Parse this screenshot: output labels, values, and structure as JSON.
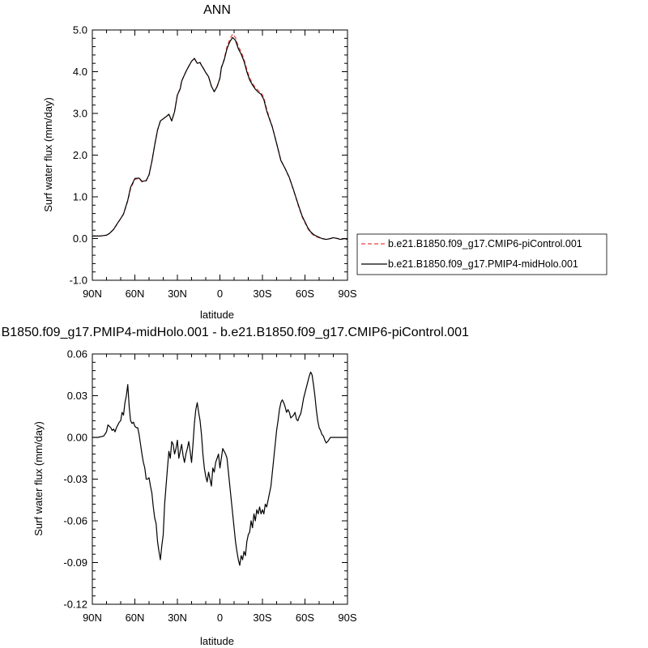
{
  "chart_data": [
    {
      "type": "line",
      "title": "ANN",
      "xlabel": "latitude",
      "ylabel": "Surf water flux (mm/day)",
      "xlim": [
        90,
        -90
      ],
      "ylim": [
        -1.0,
        5.0
      ],
      "x_ticks": [
        90,
        60,
        30,
        0,
        -30,
        -60,
        -90
      ],
      "x_tick_labels": [
        "90N",
        "60N",
        "30N",
        "0",
        "30S",
        "60S",
        "90S"
      ],
      "y_ticks": [
        -1.0,
        0.0,
        1.0,
        2.0,
        3.0,
        4.0,
        5.0
      ],
      "y_tick_labels": [
        "-1.0",
        "0.0",
        "1.0",
        "2.0",
        "3.0",
        "4.0",
        "5.0"
      ],
      "grid": false,
      "legend_position": "right",
      "series": [
        {
          "name": "b.e21.B1850.f09_g17.CMIP6-piControl.001",
          "color": "#e8413c",
          "dash": "dashed",
          "x": [
            90,
            85,
            80,
            78,
            75,
            72,
            70,
            68,
            65,
            63,
            60,
            57,
            55,
            52,
            50,
            48,
            46,
            44,
            42,
            40,
            38,
            36,
            34,
            32,
            31,
            30,
            28,
            27,
            26,
            24,
            22,
            20,
            18,
            16,
            14,
            13,
            12,
            10,
            8,
            6,
            4,
            2,
            0,
            -1,
            -3,
            -5,
            -7,
            -9,
            -11,
            -13,
            -15,
            -17,
            -19,
            -21,
            -23,
            -25,
            -27,
            -29,
            -31,
            -33,
            -35,
            -37,
            -40,
            -43,
            -46,
            -49,
            -52,
            -55,
            -58,
            -60,
            -62,
            -64,
            -66,
            -68,
            -70,
            -72,
            -75,
            -78,
            -80,
            -83,
            -85,
            -88,
            -90
          ],
          "y": [
            0.06,
            0.06,
            0.08,
            0.12,
            0.22,
            0.38,
            0.48,
            0.58,
            0.9,
            1.2,
            1.42,
            1.44,
            1.36,
            1.38,
            1.52,
            1.85,
            2.25,
            2.6,
            2.82,
            2.87,
            2.92,
            2.98,
            2.82,
            3.05,
            3.25,
            3.45,
            3.6,
            3.78,
            3.85,
            4.0,
            4.13,
            4.25,
            4.32,
            4.2,
            4.22,
            4.15,
            4.1,
            3.98,
            3.88,
            3.65,
            3.52,
            3.65,
            3.85,
            4.1,
            4.3,
            4.6,
            4.78,
            4.9,
            4.82,
            4.6,
            4.48,
            4.3,
            4.05,
            3.85,
            3.72,
            3.62,
            3.55,
            3.5,
            3.38,
            3.1,
            2.88,
            2.68,
            2.28,
            1.88,
            1.68,
            1.45,
            1.15,
            0.82,
            0.52,
            0.38,
            0.24,
            0.14,
            0.08,
            0.04,
            0.02,
            0.0,
            -0.02,
            0.0,
            0.02,
            0.0,
            -0.02,
            0.0,
            -0.02
          ]
        },
        {
          "name": "b.e21.B1850.f09_g17.PMIP4-midHolo.001",
          "color": "#000000",
          "dash": "solid",
          "x": [
            90,
            85,
            80,
            78,
            75,
            72,
            70,
            68,
            65,
            63,
            60,
            57,
            55,
            52,
            50,
            48,
            46,
            44,
            42,
            40,
            38,
            36,
            34,
            32,
            31,
            30,
            28,
            27,
            26,
            24,
            22,
            20,
            18,
            16,
            14,
            13,
            12,
            10,
            8,
            6,
            4,
            2,
            0,
            -1,
            -3,
            -5,
            -7,
            -9,
            -11,
            -13,
            -15,
            -17,
            -19,
            -21,
            -23,
            -25,
            -27,
            -29,
            -31,
            -33,
            -35,
            -37,
            -40,
            -43,
            -46,
            -49,
            -52,
            -55,
            -58,
            -60,
            -62,
            -64,
            -66,
            -68,
            -70,
            -72,
            -75,
            -78,
            -80,
            -83,
            -85,
            -88,
            -90
          ],
          "y": [
            0.06,
            0.06,
            0.08,
            0.12,
            0.22,
            0.38,
            0.48,
            0.59,
            0.92,
            1.23,
            1.44,
            1.45,
            1.37,
            1.39,
            1.53,
            1.85,
            2.24,
            2.6,
            2.82,
            2.87,
            2.92,
            2.98,
            2.82,
            3.04,
            3.24,
            3.44,
            3.59,
            3.77,
            3.85,
            4.0,
            4.13,
            4.25,
            4.32,
            4.2,
            4.22,
            4.15,
            4.1,
            3.98,
            3.88,
            3.65,
            3.52,
            3.64,
            3.84,
            4.09,
            4.28,
            4.55,
            4.72,
            4.82,
            4.75,
            4.55,
            4.42,
            4.25,
            4.0,
            3.8,
            3.68,
            3.58,
            3.51,
            3.46,
            3.33,
            3.06,
            2.86,
            2.67,
            2.28,
            1.87,
            1.68,
            1.46,
            1.16,
            0.84,
            0.54,
            0.4,
            0.26,
            0.16,
            0.1,
            0.06,
            0.03,
            0.0,
            -0.02,
            0.0,
            0.02,
            0.0,
            -0.02,
            0.0,
            -0.02
          ]
        }
      ]
    },
    {
      "type": "line",
      "title": "b.e21.B1850.f09_g17.PMIP4-midHolo.001 - b.e21.B1850.f09_g17.CMIP6-piControl.001",
      "xlabel": "latitude",
      "ylabel": "Surf water flux (mm/day)",
      "xlim": [
        90,
        -90
      ],
      "ylim": [
        -0.12,
        0.06
      ],
      "x_ticks": [
        90,
        60,
        30,
        0,
        -30,
        -60,
        -90
      ],
      "x_tick_labels": [
        "90N",
        "60N",
        "30N",
        "0",
        "30S",
        "60S",
        "90S"
      ],
      "y_ticks": [
        -0.12,
        -0.09,
        -0.06,
        -0.03,
        0.0,
        0.03,
        0.06
      ],
      "y_tick_labels": [
        "-0.12",
        "-0.09",
        "-0.06",
        "-0.03",
        "0.00",
        "0.03",
        "0.06"
      ],
      "grid": false,
      "series": [
        {
          "color": "#000000",
          "dash": "solid",
          "x": [
            90,
            86,
            82,
            80,
            79,
            78,
            77,
            76,
            75,
            74,
            73,
            72,
            71,
            70,
            69,
            68,
            67,
            66,
            65,
            64,
            63,
            62,
            61,
            60,
            59,
            58,
            57,
            56,
            55,
            54,
            53,
            52,
            51,
            50,
            49,
            48,
            47,
            46,
            45,
            44,
            43,
            42,
            41,
            40,
            39,
            38,
            37,
            36,
            35,
            34,
            33,
            32,
            31,
            30,
            29,
            28,
            27,
            26,
            25,
            24,
            23,
            22,
            21,
            20,
            19,
            18,
            17,
            16,
            15,
            14,
            13,
            12,
            11,
            10,
            9,
            8,
            7,
            6,
            5,
            4,
            3,
            2,
            1,
            0,
            -1,
            -2,
            -3,
            -4,
            -5,
            -6,
            -7,
            -8,
            -9,
            -10,
            -11,
            -12,
            -13,
            -14,
            -15,
            -16,
            -17,
            -18,
            -19,
            -20,
            -21,
            -22,
            -23,
            -24,
            -25,
            -26,
            -27,
            -28,
            -29,
            -30,
            -31,
            -32,
            -33,
            -34,
            -35,
            -36,
            -37,
            -38,
            -39,
            -40,
            -41,
            -42,
            -43,
            -44,
            -45,
            -46,
            -47,
            -48,
            -49,
            -50,
            -51,
            -52,
            -53,
            -54,
            -55,
            -56,
            -57,
            -58,
            -59,
            -60,
            -61,
            -62,
            -63,
            -64,
            -65,
            -66,
            -67,
            -68,
            -69,
            -70,
            -71,
            -72,
            -73,
            -74,
            -75,
            -76,
            -78,
            -80,
            -83,
            -86,
            -90
          ],
          "y": [
            0.0,
            0.0,
            0.001,
            0.004,
            0.009,
            0.008,
            0.007,
            0.005,
            0.006,
            0.004,
            0.007,
            0.009,
            0.011,
            0.012,
            0.018,
            0.016,
            0.025,
            0.03,
            0.038,
            0.022,
            0.012,
            0.01,
            0.011,
            0.008,
            0.007,
            0.007,
            0.002,
            -0.005,
            -0.012,
            -0.018,
            -0.022,
            -0.03,
            -0.03,
            -0.029,
            -0.035,
            -0.04,
            -0.05,
            -0.058,
            -0.062,
            -0.075,
            -0.082,
            -0.088,
            -0.078,
            -0.07,
            -0.048,
            -0.035,
            -0.022,
            -0.01,
            -0.015,
            -0.003,
            -0.005,
            -0.012,
            -0.008,
            -0.002,
            -0.015,
            -0.01,
            -0.005,
            -0.013,
            -0.018,
            -0.012,
            -0.008,
            -0.003,
            -0.01,
            -0.018,
            -0.005,
            0.01,
            0.02,
            0.025,
            0.018,
            0.012,
            0.002,
            -0.012,
            -0.022,
            -0.028,
            -0.032,
            -0.025,
            -0.03,
            -0.035,
            -0.022,
            -0.025,
            -0.018,
            -0.015,
            -0.012,
            -0.022,
            -0.015,
            -0.008,
            -0.01,
            -0.012,
            -0.015,
            -0.025,
            -0.035,
            -0.045,
            -0.055,
            -0.065,
            -0.075,
            -0.082,
            -0.088,
            -0.092,
            -0.085,
            -0.088,
            -0.082,
            -0.085,
            -0.075,
            -0.07,
            -0.068,
            -0.06,
            -0.065,
            -0.055,
            -0.06,
            -0.052,
            -0.055,
            -0.05,
            -0.055,
            -0.052,
            -0.055,
            -0.048,
            -0.05,
            -0.045,
            -0.04,
            -0.035,
            -0.025,
            -0.015,
            -0.005,
            0.005,
            0.012,
            0.02,
            0.025,
            0.027,
            0.025,
            0.022,
            0.018,
            0.02,
            0.018,
            0.014,
            0.015,
            0.016,
            0.018,
            0.013,
            0.012,
            0.015,
            0.017,
            0.022,
            0.028,
            0.032,
            0.036,
            0.04,
            0.044,
            0.047,
            0.045,
            0.038,
            0.03,
            0.02,
            0.012,
            0.007,
            0.005,
            0.002,
            0.001,
            -0.002,
            -0.004,
            -0.003,
            0.0,
            0.0,
            0.0,
            0.0,
            0.0
          ]
        }
      ]
    }
  ]
}
